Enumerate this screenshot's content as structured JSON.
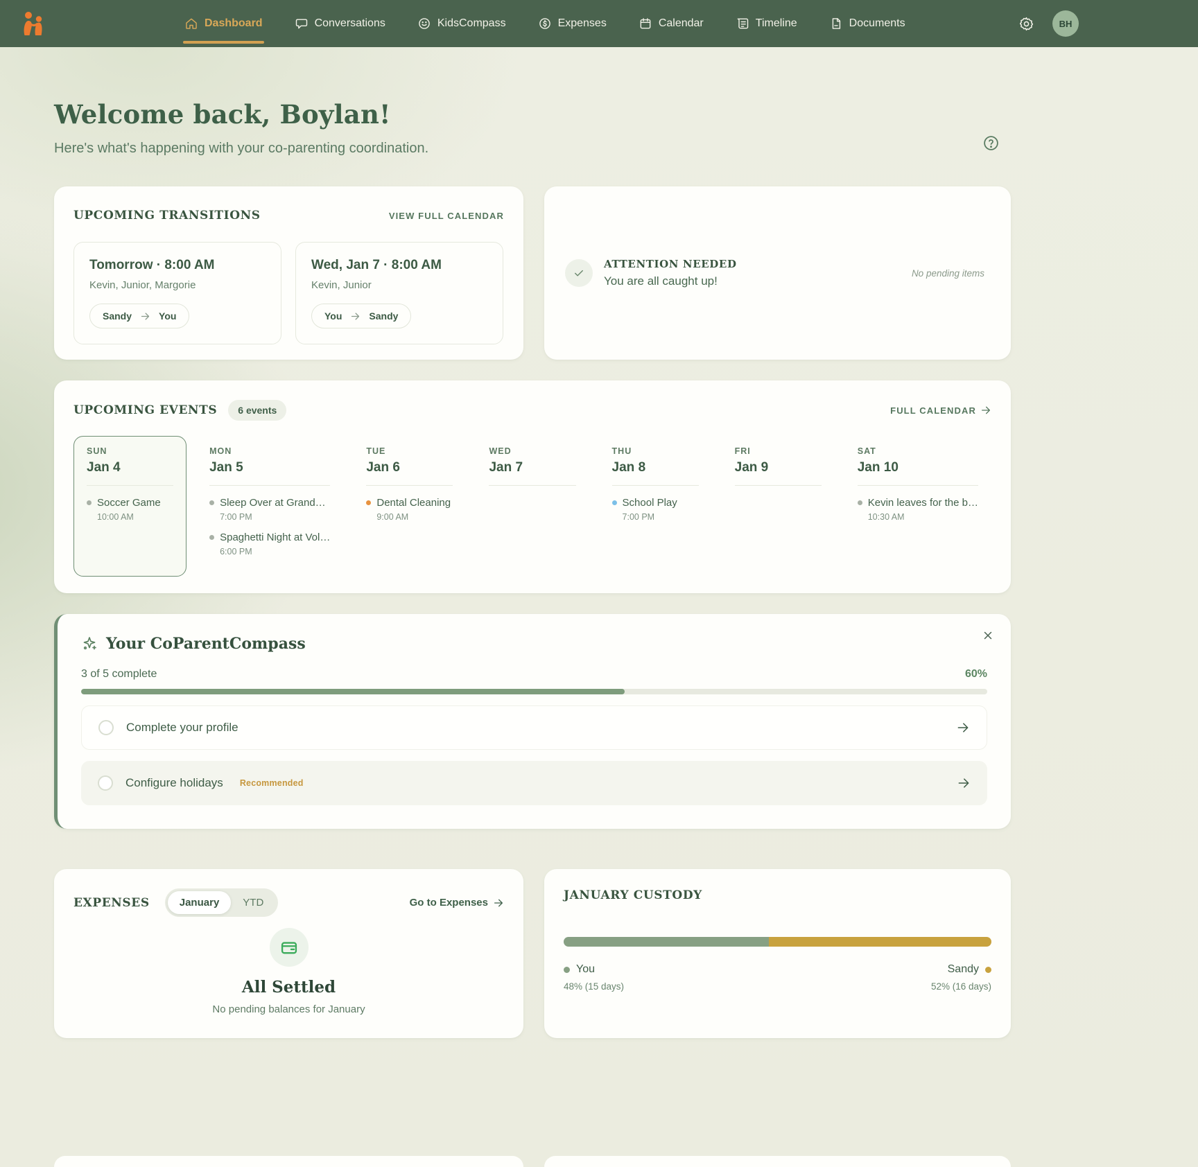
{
  "nav": {
    "items": [
      {
        "label": "Dashboard"
      },
      {
        "label": "Conversations"
      },
      {
        "label": "KidsCompass"
      },
      {
        "label": "Expenses"
      },
      {
        "label": "Calendar"
      },
      {
        "label": "Timeline"
      },
      {
        "label": "Documents"
      }
    ],
    "avatar_initials": "BH"
  },
  "header": {
    "title": "Welcome back, Boylan!",
    "subtitle": "Here's what's happening with your co-parenting coordination."
  },
  "transitions": {
    "title": "UPCOMING TRANSITIONS",
    "link": "VIEW FULL CALENDAR",
    "cards": [
      {
        "when": "Tomorrow · 8:00 AM",
        "kids": "Kevin, Junior, Margorie",
        "from": "Sandy",
        "to": "You"
      },
      {
        "when": "Wed, Jan 7 · 8:00 AM",
        "kids": "Kevin, Junior",
        "from": "You",
        "to": "Sandy"
      }
    ]
  },
  "attention": {
    "title": "ATTENTION NEEDED",
    "message": "You are all caught up!",
    "note": "No pending items"
  },
  "events": {
    "title": "UPCOMING EVENTS",
    "badge": "6 events",
    "link": "FULL CALENDAR",
    "days": [
      {
        "dow": "SUN",
        "date": "Jan 4",
        "items": [
          {
            "name": "Soccer Game",
            "time": "10:00 AM",
            "dot": "#a9b1a6"
          }
        ]
      },
      {
        "dow": "MON",
        "date": "Jan 5",
        "items": [
          {
            "name": "Sleep Over at Grand…",
            "time": "7:00 PM",
            "dot": "#a9b1a6"
          },
          {
            "name": "Spaghetti Night at Vol…",
            "time": "6:00 PM",
            "dot": "#a9b1a6"
          }
        ]
      },
      {
        "dow": "TUE",
        "date": "Jan 6",
        "items": [
          {
            "name": "Dental Cleaning",
            "time": "9:00 AM",
            "dot": "#e8923f"
          }
        ]
      },
      {
        "dow": "WED",
        "date": "Jan 7",
        "items": []
      },
      {
        "dow": "THU",
        "date": "Jan 8",
        "items": [
          {
            "name": "School Play",
            "time": "7:00 PM",
            "dot": "#7cc0e8"
          }
        ]
      },
      {
        "dow": "FRI",
        "date": "Jan 9",
        "items": []
      },
      {
        "dow": "SAT",
        "date": "Jan 10",
        "items": [
          {
            "name": "Kevin leaves for the b…",
            "time": "10:30 AM",
            "dot": "#a9b1a6"
          }
        ]
      }
    ]
  },
  "compass": {
    "title": "Your CoParentCompass",
    "progress_label": "3 of 5 complete",
    "percent_label": "60%",
    "percent": 60,
    "tasks": [
      {
        "label": "Complete your profile",
        "tag": ""
      },
      {
        "label": "Configure holidays",
        "tag": "Recommended"
      }
    ]
  },
  "expenses": {
    "title": "EXPENSES",
    "toggle_month": "January",
    "toggle_ytd": "YTD",
    "link": "Go to Expenses",
    "status": "All Settled",
    "note": "No pending balances for January"
  },
  "custody": {
    "title": "JANUARY CUSTODY",
    "left": {
      "name": "You",
      "detail": "48% (15 days)",
      "percent": 48,
      "color": "#87a083"
    },
    "right": {
      "name": "Sandy",
      "detail": "52% (16 days)",
      "percent": 52,
      "color": "#c8a23e"
    }
  }
}
